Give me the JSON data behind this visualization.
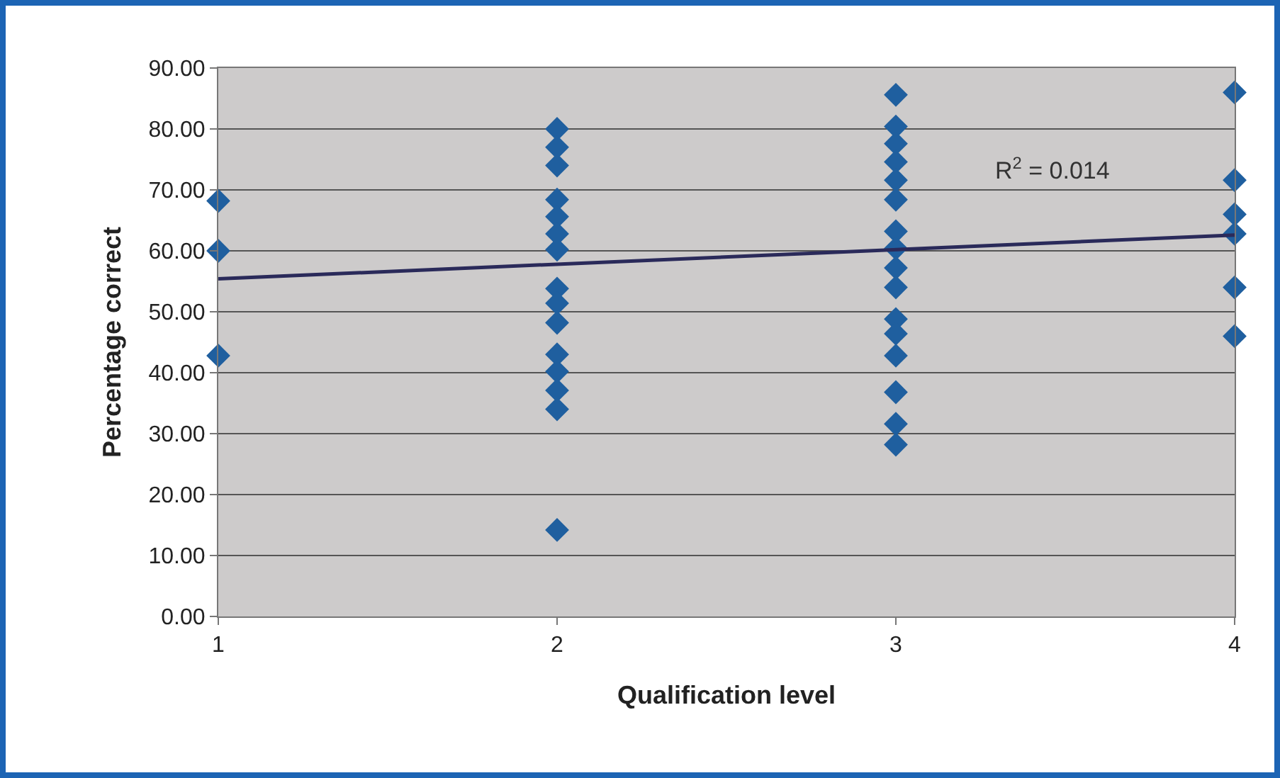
{
  "chart_data": {
    "type": "scatter",
    "xlabel": "Qualification level",
    "ylabel": "Percentage correct",
    "xlim": [
      1,
      4
    ],
    "xticks": [
      1,
      2,
      3,
      4
    ],
    "ylim": [
      0,
      90
    ],
    "yticks": [
      {
        "value": 0,
        "label": "0.00"
      },
      {
        "value": 10,
        "label": "10.00"
      },
      {
        "value": 20,
        "label": "20.00"
      },
      {
        "value": 30,
        "label": "30.00"
      },
      {
        "value": 40,
        "label": "40.00"
      },
      {
        "value": 50,
        "label": "50.00"
      },
      {
        "value": 60,
        "label": "60.00"
      },
      {
        "value": 70,
        "label": "70.00"
      },
      {
        "value": 80,
        "label": "80.00"
      },
      {
        "value": 90,
        "label": "90.00"
      }
    ],
    "grid": "y",
    "marker": "diamond",
    "annotations": [
      "R$^{2}$ = 0.014"
    ],
    "series": [
      {
        "color": "#1f5f9f",
        "x": [
          1,
          1,
          1,
          2,
          2,
          2,
          2,
          2,
          2,
          2,
          2,
          2,
          2,
          2,
          2,
          2,
          2,
          2,
          3,
          3,
          3,
          3,
          3,
          3,
          3,
          3,
          3,
          3,
          3,
          3,
          3,
          3,
          3,
          3,
          4,
          4,
          4,
          4,
          4,
          4
        ],
        "values": [
          68.2,
          60,
          42.8,
          80,
          77,
          74,
          68.4,
          65.6,
          62.8,
          60.2,
          53.8,
          51.4,
          48.2,
          43,
          40.2,
          37.1,
          34,
          14.2,
          85.6,
          80.4,
          77.6,
          74.6,
          71.6,
          68.4,
          63.2,
          60.4,
          57.2,
          54,
          48.8,
          46.4,
          42.8,
          36.8,
          31.6,
          28.2,
          86,
          71.6,
          66,
          62.8,
          54,
          46
        ]
      },
      {
        "type": "line",
        "color": "#2a2a5a",
        "x": [
          1,
          4
        ],
        "values": [
          55.4,
          62.6
        ],
        "marker": "none",
        "line_style": "solid"
      }
    ]
  }
}
